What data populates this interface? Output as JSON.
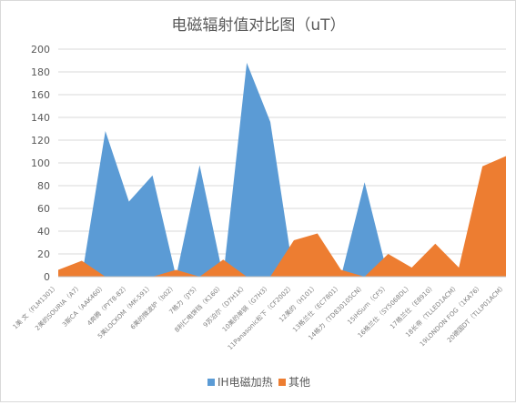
{
  "chart_data": {
    "type": "area",
    "title": "电磁辐射值对比图（uT）",
    "xlabel": "",
    "ylabel": "",
    "ylim": [
      0,
      200
    ],
    "yticks": [
      0,
      20,
      40,
      60,
      80,
      100,
      120,
      140,
      160,
      180,
      200
    ],
    "grid": true,
    "legend_position": "bottom",
    "categories": [
      "1美 文（FLM1301）",
      "2美的SOURIA（A7）",
      "3斯CA（AAK460）",
      "4奔腾（PYT8-82）",
      "5美LOCKOM（MK-591）",
      "6美的微波炉（b02）",
      "7格力（JY5）",
      "8利仁电饼铛（K160）",
      "9苏泊尔（D7H1K）",
      "10美的单锅（G7H3）",
      "11Panasonic松下（CF2002）",
      "12美的（H101）",
      "13格兰仕（EC7801）",
      "14格力（TD830105CN）",
      "15iHSum（CF5）",
      "16格兰仕（SY5068DL）",
      "17格兰仕（E8910）",
      "18长帝（TLLED1ACM）",
      "19LONDON FOG（1KA76）",
      "20德国DT（TLLP01ACM）"
    ],
    "series": [
      {
        "name": "IH电磁加热",
        "color": "#5b9bd5",
        "values": [
          0,
          0,
          128,
          66,
          89,
          0,
          98,
          0,
          188,
          136,
          0,
          0,
          0,
          83,
          0,
          0,
          0,
          0,
          0,
          106
        ]
      },
      {
        "name": "其他",
        "color": "#ed7d31",
        "values": [
          6,
          14,
          0,
          0,
          0,
          6,
          0,
          15,
          0,
          0,
          32,
          38,
          6,
          0,
          20,
          8,
          29,
          8,
          97,
          106
        ]
      }
    ]
  }
}
